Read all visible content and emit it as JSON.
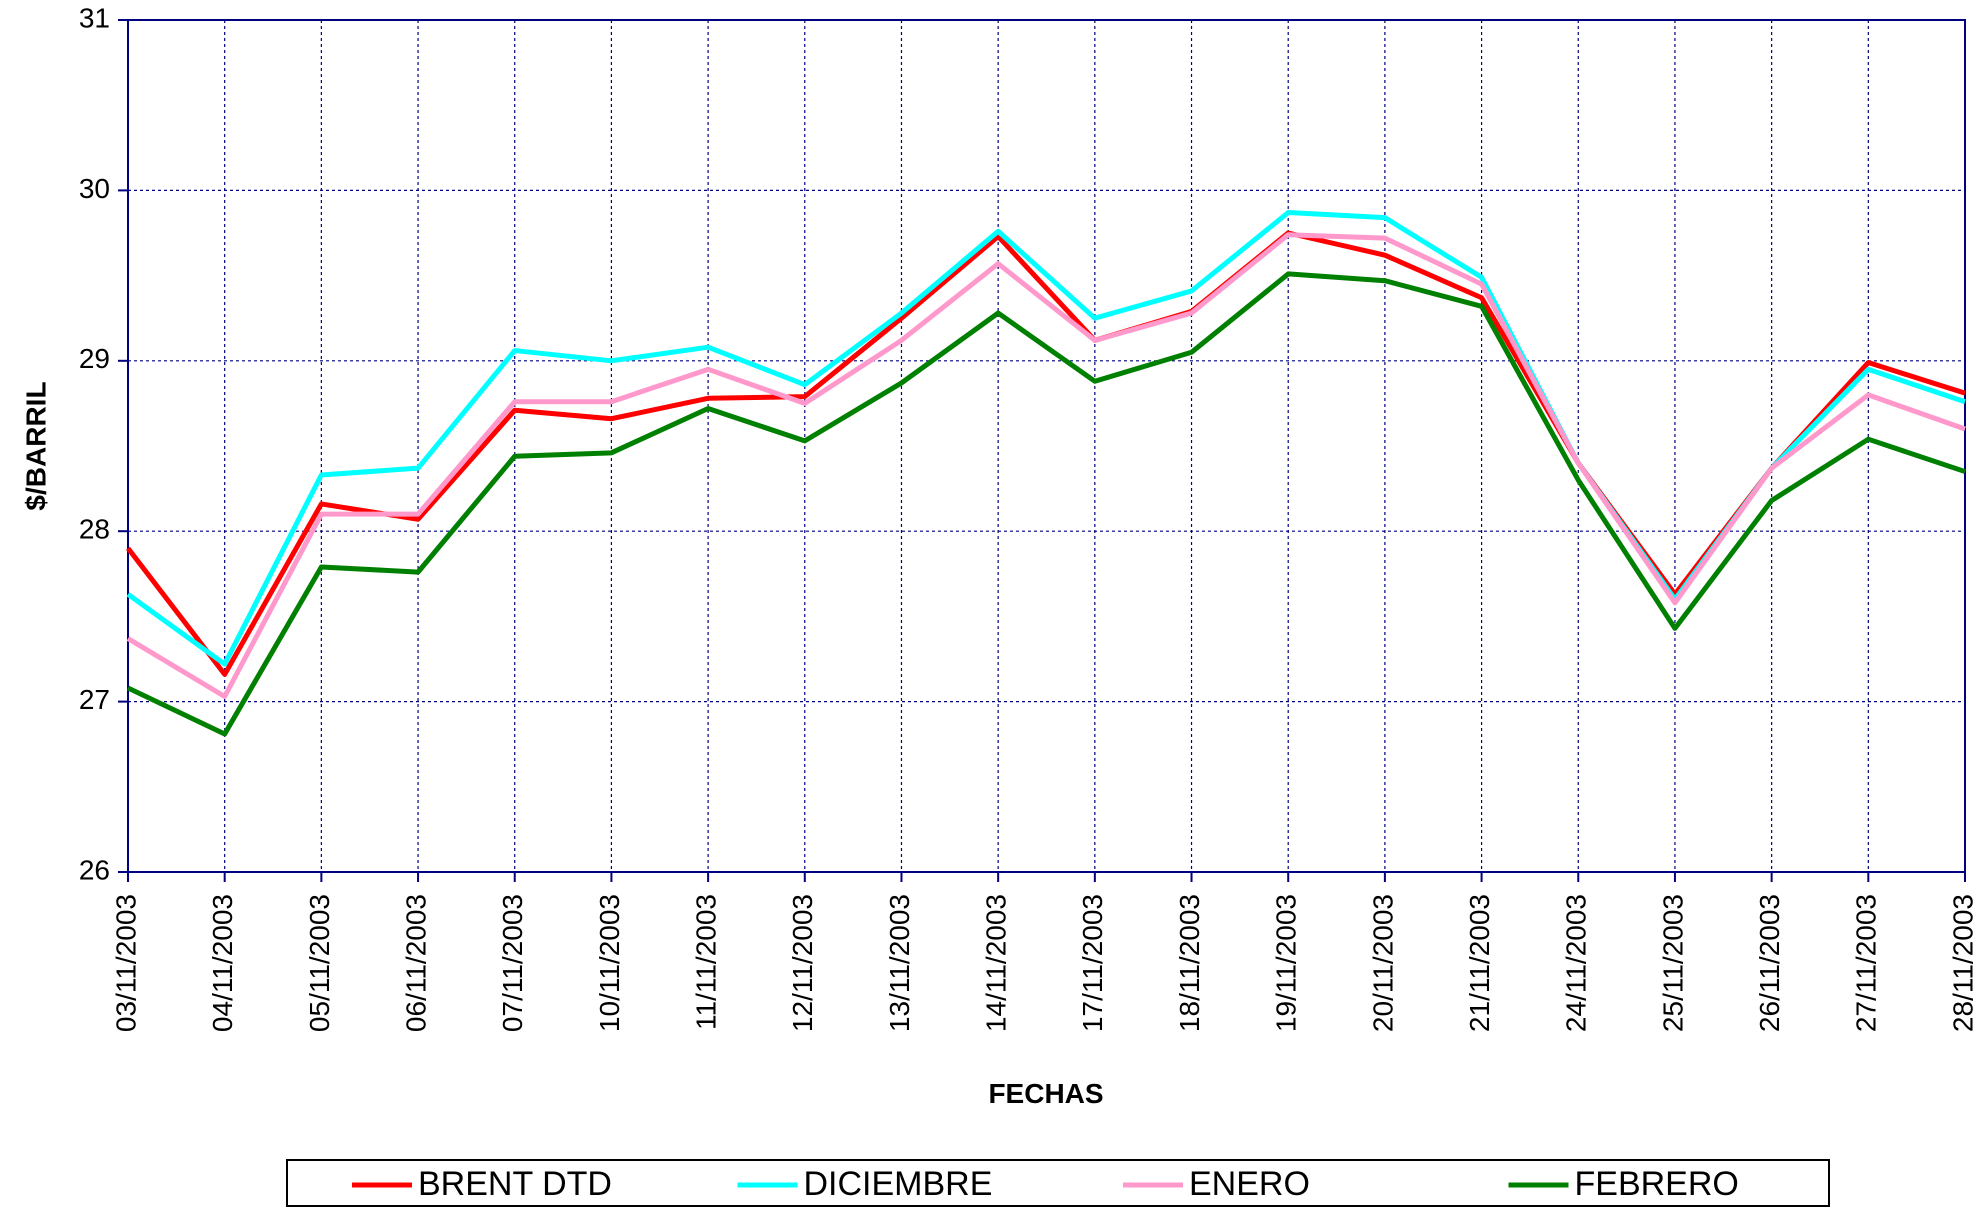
{
  "chart_data": {
    "type": "line",
    "xlabel": "FECHAS",
    "ylabel": "$/BARRIL",
    "categories": [
      "03/11/2003",
      "04/11/2003",
      "05/11/2003",
      "06/11/2003",
      "07/11/2003",
      "10/11/2003",
      "11/11/2003",
      "12/11/2003",
      "13/11/2003",
      "14/11/2003",
      "17/11/2003",
      "18/11/2003",
      "19/11/2003",
      "20/11/2003",
      "21/11/2003",
      "24/11/2003",
      "25/11/2003",
      "26/11/2003",
      "27/11/2003",
      "28/11/2003"
    ],
    "series": [
      {
        "name": "BRENT DTD",
        "color": "#ff0000",
        "values": [
          27.9,
          27.16,
          28.16,
          28.07,
          28.71,
          28.66,
          28.78,
          28.79,
          29.25,
          29.73,
          29.12,
          29.29,
          29.75,
          29.62,
          29.37,
          28.4,
          27.63,
          28.37,
          28.99,
          28.81
        ]
      },
      {
        "name": "DICIEMBRE",
        "color": "#00ffff",
        "values": [
          27.63,
          27.22,
          28.33,
          28.37,
          29.06,
          29.0,
          29.08,
          28.86,
          29.28,
          29.76,
          29.25,
          29.41,
          29.87,
          29.84,
          29.49,
          28.4,
          27.6,
          28.37,
          28.95,
          28.76
        ]
      },
      {
        "name": "ENERO",
        "color": "#ff99cc",
        "values": [
          27.37,
          27.03,
          28.1,
          28.1,
          28.76,
          28.76,
          28.95,
          28.75,
          29.12,
          29.57,
          29.12,
          29.28,
          29.74,
          29.72,
          29.45,
          28.4,
          27.58,
          28.37,
          28.8,
          28.6
        ]
      },
      {
        "name": "FEBRERO",
        "color": "#008000",
        "values": [
          27.08,
          26.81,
          27.79,
          27.76,
          28.44,
          28.46,
          28.72,
          28.53,
          28.87,
          29.28,
          28.88,
          29.05,
          29.51,
          29.47,
          29.32,
          28.3,
          27.43,
          28.18,
          28.54,
          28.35
        ]
      }
    ],
    "ylim": [
      26,
      31
    ],
    "yticks": [
      26,
      27,
      28,
      29,
      30,
      31
    ],
    "grid": true,
    "legend": "bottom"
  }
}
